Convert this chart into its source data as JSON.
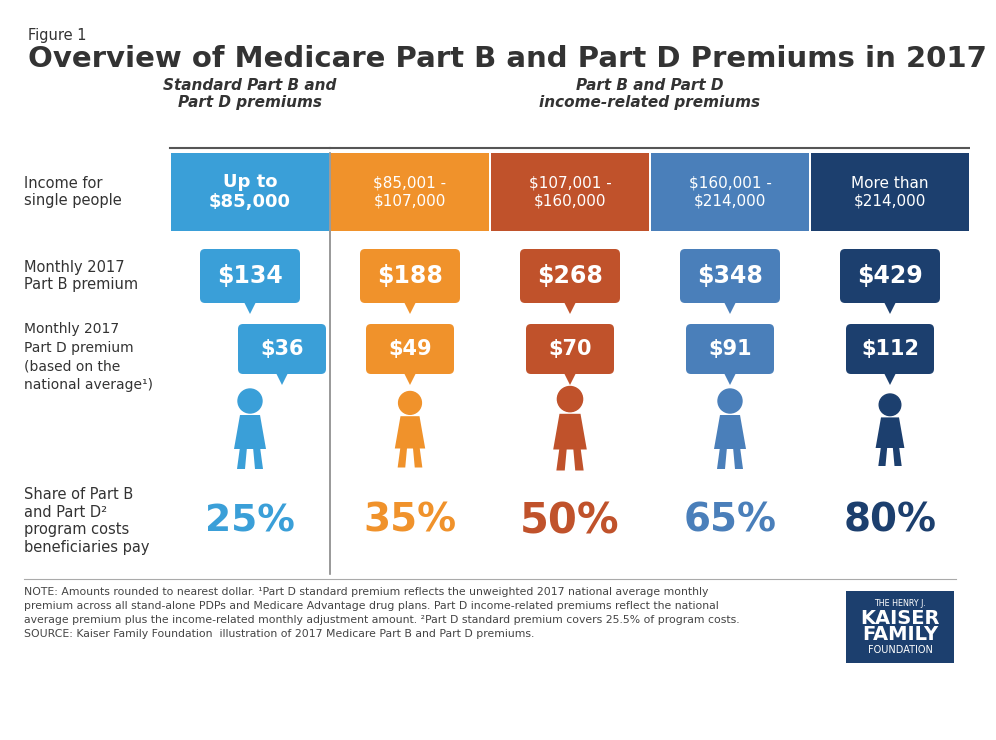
{
  "title": "Overview of Medicare Part B and Part D Premiums in 2017",
  "figure_label": "Figure 1",
  "subtitle_left": "Standard Part B and\nPart D premiums",
  "subtitle_right": "Part B and Part D\nincome-related premiums",
  "income_labels": [
    "Up to\n$85,000",
    "$85,001 -\n$107,000",
    "$107,001 -\n$160,000",
    "$160,001 -\n$214,000",
    "More than\n$214,000"
  ],
  "partb_premiums": [
    "$134",
    "$188",
    "$268",
    "$348",
    "$429"
  ],
  "partd_premiums": [
    "$36",
    "$49",
    "$70",
    "$91",
    "$112"
  ],
  "percentages": [
    "25%",
    "35%",
    "50%",
    "65%",
    "80%"
  ],
  "col_colors": [
    "#3a9fd8",
    "#f0922b",
    "#c0522b",
    "#4a7fba",
    "#1c3f6e"
  ],
  "pct_colors": [
    "#3a9fd8",
    "#f0922b",
    "#c0522b",
    "#4a7fba",
    "#1c3f6e"
  ],
  "row_label_income": "Income for\nsingle people",
  "row_label_partb": "Monthly 2017\nPart B premium",
  "row_label_partd": "Monthly 2017\nPart D premium\n(based on the\nnational average¹)",
  "row_label_share": "Share of Part B\nand Part D²\nprogram costs\nbeneficiaries pay",
  "note_text": "NOTE: Amounts rounded to nearest dollar. ¹Part D standard premium reflects the unweighted 2017 national average monthly\npremium across all stand-alone PDPs and Medicare Advantage drug plans. Part D income-related premiums reflect the national\naverage premium plus the income-related monthly adjustment amount. ²Part D standard premium covers 25.5% of program costs.\nSOURCE: Kaiser Family Foundation  illustration of 2017 Medicare Part B and Part D premiums.",
  "background_color": "#ffffff",
  "text_color": "#333333"
}
